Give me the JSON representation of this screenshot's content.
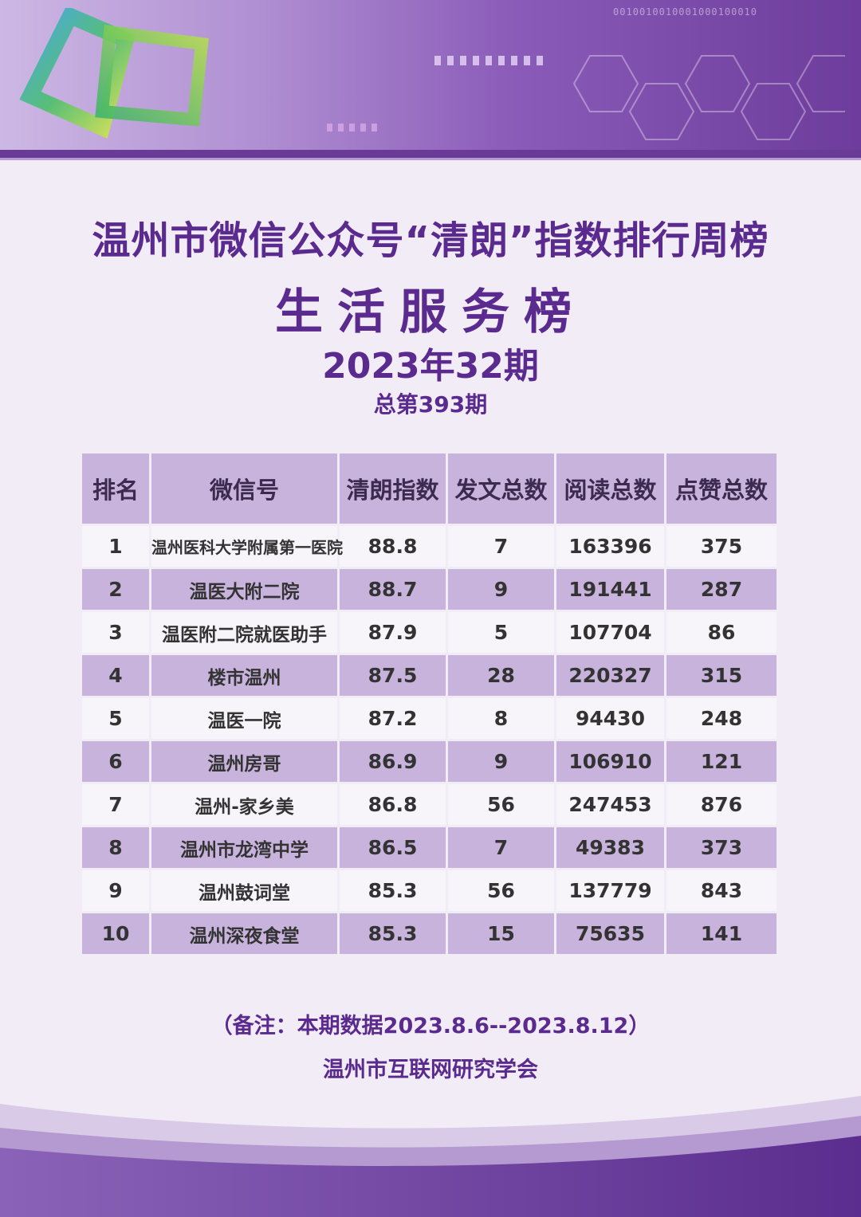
{
  "header": {
    "title": "温州市微信公众号“清朗”指数排行周榜",
    "subtitle": "生活服务榜",
    "period": "2023年32期",
    "total_issue": "总第393期"
  },
  "banner": {
    "binary_text": "0010010010001000100010"
  },
  "table": {
    "columns": [
      "排名",
      "微信号",
      "清朗指数",
      "发文总数",
      "阅读总数",
      "点赞总数"
    ],
    "rows": [
      {
        "rank": "1",
        "name": "温州医科大学附属第一医院",
        "index": "88.8",
        "posts": "7",
        "reads": "163396",
        "likes": "375"
      },
      {
        "rank": "2",
        "name": "温医大附二院",
        "index": "88.7",
        "posts": "9",
        "reads": "191441",
        "likes": "287"
      },
      {
        "rank": "3",
        "name": "温医附二院就医助手",
        "index": "87.9",
        "posts": "5",
        "reads": "107704",
        "likes": "86"
      },
      {
        "rank": "4",
        "name": "楼市温州",
        "index": "87.5",
        "posts": "28",
        "reads": "220327",
        "likes": "315"
      },
      {
        "rank": "5",
        "name": "温医一院",
        "index": "87.2",
        "posts": "8",
        "reads": "94430",
        "likes": "248"
      },
      {
        "rank": "6",
        "name": "温州房哥",
        "index": "86.9",
        "posts": "9",
        "reads": "106910",
        "likes": "121"
      },
      {
        "rank": "7",
        "name": "温州-家乡美",
        "index": "86.8",
        "posts": "56",
        "reads": "247453",
        "likes": "876"
      },
      {
        "rank": "8",
        "name": "温州市龙湾中学",
        "index": "86.5",
        "posts": "7",
        "reads": "49383",
        "likes": "373"
      },
      {
        "rank": "9",
        "name": "温州鼓词堂",
        "index": "85.3",
        "posts": "56",
        "reads": "137779",
        "likes": "843"
      },
      {
        "rank": "10",
        "name": "温州深夜食堂",
        "index": "85.3",
        "posts": "15",
        "reads": "75635",
        "likes": "141"
      }
    ]
  },
  "footer": {
    "note": "（备注：本期数据2023.8.6--2023.8.12）",
    "org": "温州市互联网研究学会"
  },
  "colors": {
    "primary": "#5a2a8f",
    "row_highlight": "#c8b3dc",
    "row_light": "#f7f4fa",
    "banner_dark": "#6a3a97"
  }
}
